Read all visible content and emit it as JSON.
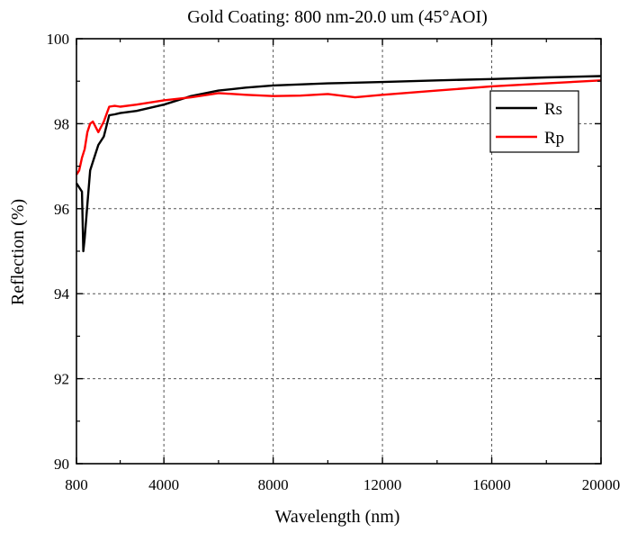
{
  "chart_data": {
    "type": "line",
    "title": "Gold Coating: 800 nm-20.0 um (45°AOI)",
    "xlabel": "Wavelength (nm)",
    "ylabel": "Reflection (%)",
    "xlim": [
      800,
      20000
    ],
    "ylim": [
      90,
      100
    ],
    "xticks": [
      800,
      4000,
      8000,
      12000,
      16000,
      20000
    ],
    "xtick_labels": [
      "800",
      "4000",
      "8000",
      "12000",
      "16000",
      "20000"
    ],
    "yticks": [
      90,
      92,
      94,
      96,
      98,
      100
    ],
    "ytick_labels": [
      "90",
      "92",
      "94",
      "96",
      "98",
      "100"
    ],
    "grid": true,
    "legend_position": "top-right",
    "series": [
      {
        "name": "Rs",
        "color": "#000000",
        "x": [
          800,
          900,
          1000,
          1050,
          1100,
          1200,
          1300,
          1400,
          1600,
          1800,
          2000,
          2200,
          2400,
          3000,
          4000,
          5000,
          6000,
          7000,
          8000,
          10000,
          12000,
          14000,
          16000,
          18000,
          20000
        ],
        "y": [
          96.6,
          96.5,
          96.4,
          95.0,
          95.3,
          96.1,
          96.9,
          97.1,
          97.5,
          97.7,
          98.2,
          98.22,
          98.25,
          98.3,
          98.45,
          98.65,
          98.78,
          98.85,
          98.9,
          98.95,
          98.98,
          99.02,
          99.05,
          99.09,
          99.12
        ]
      },
      {
        "name": "Rp",
        "color": "#ff0000",
        "x": [
          800,
          900,
          1000,
          1100,
          1200,
          1300,
          1400,
          1600,
          1800,
          2000,
          2200,
          2400,
          3000,
          4000,
          5000,
          6000,
          7000,
          8000,
          9000,
          10000,
          11000,
          12000,
          14000,
          16000,
          18000,
          20000
        ],
        "y": [
          96.8,
          96.9,
          97.2,
          97.4,
          97.8,
          98.0,
          98.05,
          97.8,
          98.05,
          98.4,
          98.42,
          98.4,
          98.45,
          98.55,
          98.62,
          98.72,
          98.68,
          98.65,
          98.66,
          98.7,
          98.62,
          98.68,
          98.78,
          98.88,
          98.95,
          99.02
        ]
      }
    ]
  }
}
